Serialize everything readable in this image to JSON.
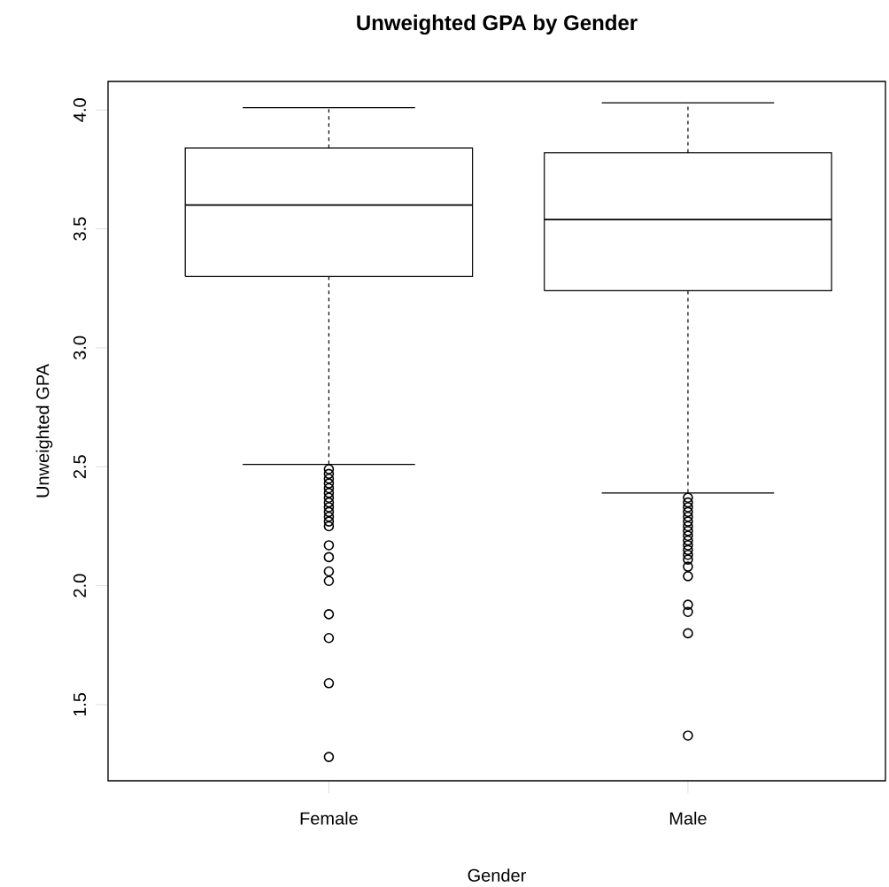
{
  "chart_data": {
    "type": "box",
    "title": "Unweighted GPA by Gender",
    "xlabel": "Gender",
    "ylabel": "Unweighted GPA",
    "categories": [
      "Female",
      "Male"
    ],
    "boxes": [
      {
        "low": 2.51,
        "q1": 3.3,
        "median": 3.6,
        "q3": 3.84,
        "high": 4.01,
        "outliers": [
          2.49,
          2.47,
          2.45,
          2.43,
          2.41,
          2.39,
          2.37,
          2.35,
          2.33,
          2.31,
          2.29,
          2.27,
          2.25,
          2.17,
          2.12,
          2.06,
          2.02,
          1.88,
          1.78,
          1.59,
          1.28
        ]
      },
      {
        "low": 2.39,
        "q1": 3.24,
        "median": 3.54,
        "q3": 3.82,
        "high": 4.03,
        "outliers": [
          2.37,
          2.35,
          2.33,
          2.31,
          2.29,
          2.27,
          2.25,
          2.23,
          2.21,
          2.19,
          2.17,
          2.15,
          2.13,
          2.11,
          2.08,
          2.04,
          1.92,
          1.89,
          1.8,
          1.37
        ]
      }
    ],
    "ylim": [
      1.18,
      4.12
    ],
    "yticks": [
      {
        "value": 1.5,
        "label": "1.5"
      },
      {
        "value": 2,
        "label": "2.0"
      },
      {
        "value": 2.5,
        "label": "2.5"
      },
      {
        "value": 3,
        "label": "3.0"
      },
      {
        "value": 3.5,
        "label": "3.5"
      },
      {
        "value": 4,
        "label": "4.0"
      }
    ],
    "grid": false,
    "marker": "circle",
    "line_style": "dashed"
  }
}
